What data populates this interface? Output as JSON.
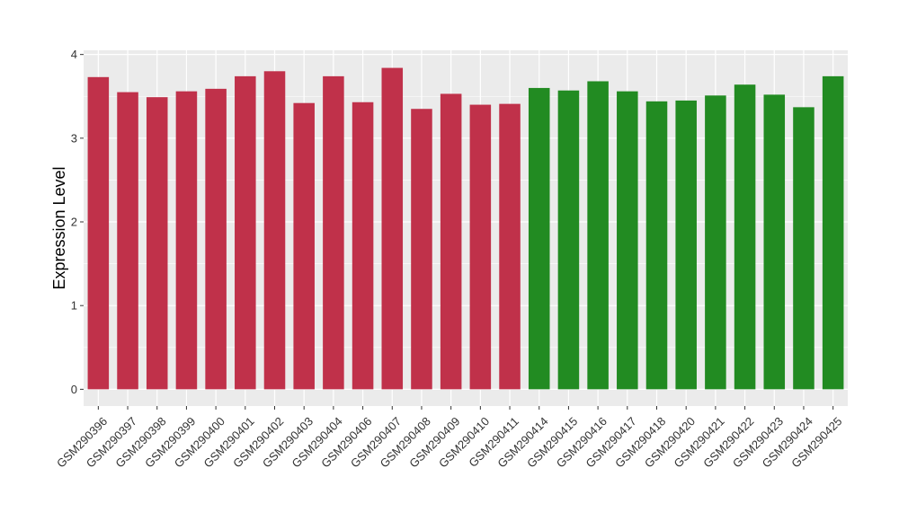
{
  "chart_data": {
    "type": "bar",
    "title": "",
    "xlabel": "",
    "ylabel": "Expression Level",
    "ylim": [
      -0.2,
      4.05
    ],
    "yticks": [
      0,
      1,
      2,
      3,
      4
    ],
    "grid": true,
    "categories": [
      "GSM290396",
      "GSM290397",
      "GSM290398",
      "GSM290399",
      "GSM290400",
      "GSM290401",
      "GSM290402",
      "GSM290403",
      "GSM290404",
      "GSM290406",
      "GSM290407",
      "GSM290408",
      "GSM290409",
      "GSM290410",
      "GSM290411",
      "GSM290414",
      "GSM290415",
      "GSM290416",
      "GSM290417",
      "GSM290418",
      "GSM290420",
      "GSM290421",
      "GSM290422",
      "GSM290423",
      "GSM290424",
      "GSM290425"
    ],
    "values": [
      3.73,
      3.55,
      3.49,
      3.56,
      3.59,
      3.74,
      3.8,
      3.42,
      3.74,
      3.43,
      3.84,
      3.35,
      3.53,
      3.4,
      3.41,
      3.6,
      3.57,
      3.68,
      3.56,
      3.44,
      3.45,
      3.51,
      3.64,
      3.52,
      3.37,
      3.74
    ],
    "bar_colors": [
      "#C0314A",
      "#C0314A",
      "#C0314A",
      "#C0314A",
      "#C0314A",
      "#C0314A",
      "#C0314A",
      "#C0314A",
      "#C0314A",
      "#C0314A",
      "#C0314A",
      "#C0314A",
      "#C0314A",
      "#C0314A",
      "#C0314A",
      "#228B22",
      "#228B22",
      "#228B22",
      "#228B22",
      "#228B22",
      "#228B22",
      "#228B22",
      "#228B22",
      "#228B22",
      "#228B22",
      "#228B22"
    ],
    "panel_background": "#EBEBEB",
    "grid_color": "#FFFFFF"
  }
}
